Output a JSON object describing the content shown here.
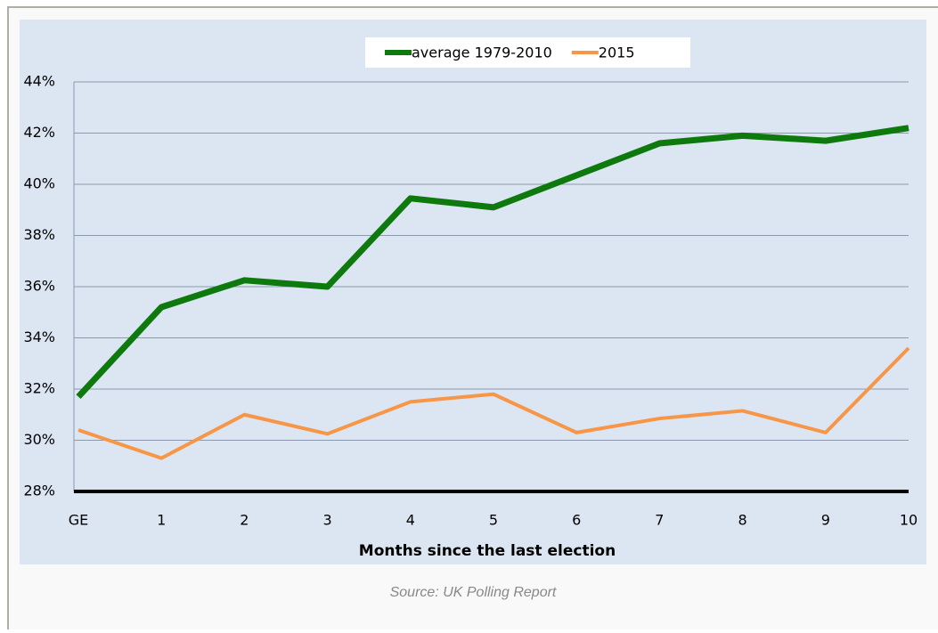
{
  "chart_data": {
    "type": "line",
    "categories": [
      "GE",
      "1",
      "2",
      "3",
      "4",
      "5",
      "6",
      "7",
      "8",
      "9",
      "10"
    ],
    "series": [
      {
        "name": "average 1979-2010",
        "color": "#0e7a0d",
        "values": [
          31.7,
          35.2,
          36.25,
          36.0,
          39.45,
          39.1,
          40.35,
          41.6,
          41.9,
          41.7,
          42.2
        ]
      },
      {
        "name": "2015",
        "color": "#f79646",
        "values": [
          30.4,
          29.3,
          31.0,
          30.25,
          31.5,
          31.8,
          30.3,
          30.85,
          31.15,
          30.3,
          33.6
        ]
      }
    ],
    "ylim": [
      28,
      44
    ],
    "yticks": [
      {
        "value": 28,
        "label": "28%"
      },
      {
        "value": 30,
        "label": "30%"
      },
      {
        "value": 32,
        "label": "32%"
      },
      {
        "value": 34,
        "label": "34%"
      },
      {
        "value": 36,
        "label": "36%"
      },
      {
        "value": 38,
        "label": "38%"
      },
      {
        "value": 40,
        "label": "40%"
      },
      {
        "value": 42,
        "label": "42%"
      },
      {
        "value": 44,
        "label": "44%"
      }
    ],
    "xlabel": "Months since the last election",
    "grid": true,
    "legend": "top"
  },
  "caption": "Source: UK Polling Report"
}
